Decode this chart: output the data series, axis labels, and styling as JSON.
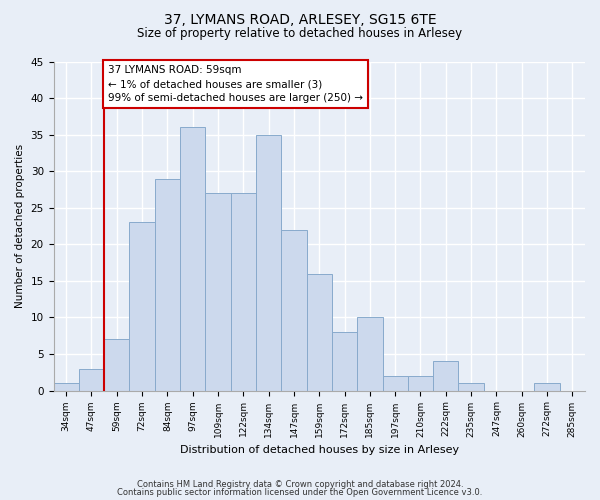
{
  "title": "37, LYMANS ROAD, ARLESEY, SG15 6TE",
  "subtitle": "Size of property relative to detached houses in Arlesey",
  "xlabel": "Distribution of detached houses by size in Arlesey",
  "ylabel": "Number of detached properties",
  "bin_labels": [
    "34sqm",
    "47sqm",
    "59sqm",
    "72sqm",
    "84sqm",
    "97sqm",
    "109sqm",
    "122sqm",
    "134sqm",
    "147sqm",
    "159sqm",
    "172sqm",
    "185sqm",
    "197sqm",
    "210sqm",
    "222sqm",
    "235sqm",
    "247sqm",
    "260sqm",
    "272sqm",
    "285sqm"
  ],
  "bar_values": [
    1,
    3,
    7,
    23,
    29,
    36,
    27,
    27,
    35,
    22,
    16,
    8,
    10,
    2,
    2,
    4,
    1,
    0,
    0,
    1,
    0
  ],
  "bar_color": "#ccd9ed",
  "bar_edge_color": "#88aacc",
  "highlight_line_color": "#cc0000",
  "highlight_bar_index": 2,
  "annotation_text": "37 LYMANS ROAD: 59sqm\n← 1% of detached houses are smaller (3)\n99% of semi-detached houses are larger (250) →",
  "annotation_box_color": "#ffffff",
  "annotation_box_edge_color": "#cc0000",
  "ylim": [
    0,
    45
  ],
  "yticks": [
    0,
    5,
    10,
    15,
    20,
    25,
    30,
    35,
    40,
    45
  ],
  "footer_line1": "Contains HM Land Registry data © Crown copyright and database right 2024.",
  "footer_line2": "Contains public sector information licensed under the Open Government Licence v3.0.",
  "background_color": "#e8eef7",
  "grid_color": "#ffffff",
  "title_fontsize": 10,
  "subtitle_fontsize": 8.5
}
